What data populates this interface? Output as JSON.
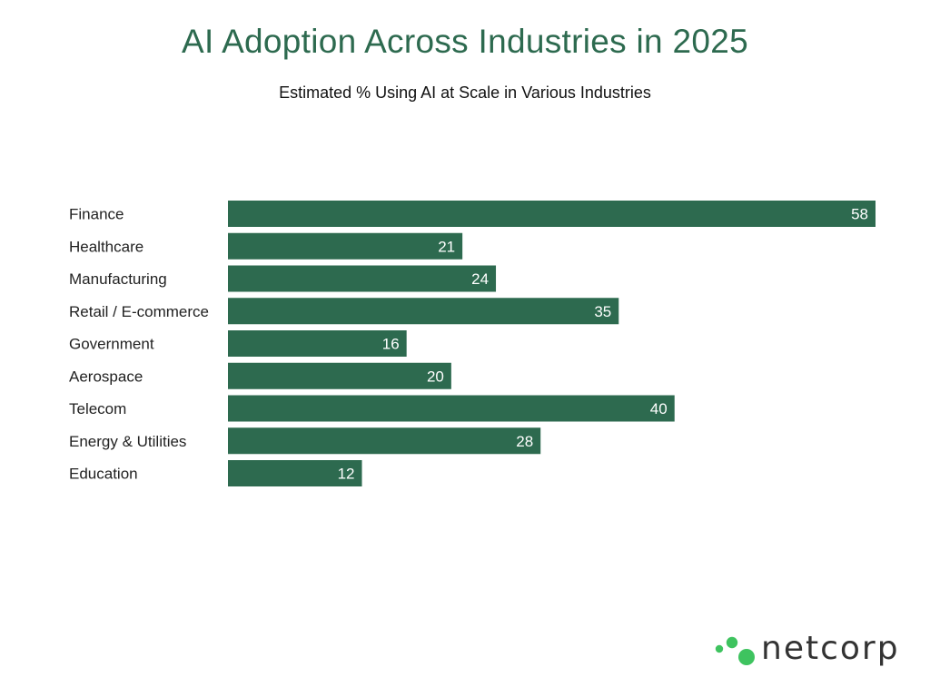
{
  "header": {
    "title": "AI Adoption Across Industries in 2025",
    "subtitle": "Estimated % Using AI at Scale in Various Industries"
  },
  "chart_data": {
    "type": "bar",
    "orientation": "horizontal",
    "title": "AI Adoption Across Industries in 2025",
    "subtitle": "Estimated % Using AI at Scale in Various Industries",
    "xlabel": "",
    "ylabel": "",
    "categories": [
      "Finance",
      "Healthcare",
      "Manufacturing",
      "Retail / E-commerce",
      "Government",
      "Aerospace",
      "Telecom",
      "Energy & Utilities",
      "Education"
    ],
    "values": [
      58,
      21,
      24,
      35,
      16,
      20,
      40,
      28,
      12
    ],
    "xlim": [
      0,
      58
    ],
    "grid": false,
    "legend": "none",
    "data_labels": "inside-end",
    "bar_color": "#2d6a4f"
  },
  "brand": {
    "name": "netcorp",
    "logo_icon": "green-dots-icon",
    "accent_color": "#3ec35f",
    "text_color": "#333333"
  }
}
